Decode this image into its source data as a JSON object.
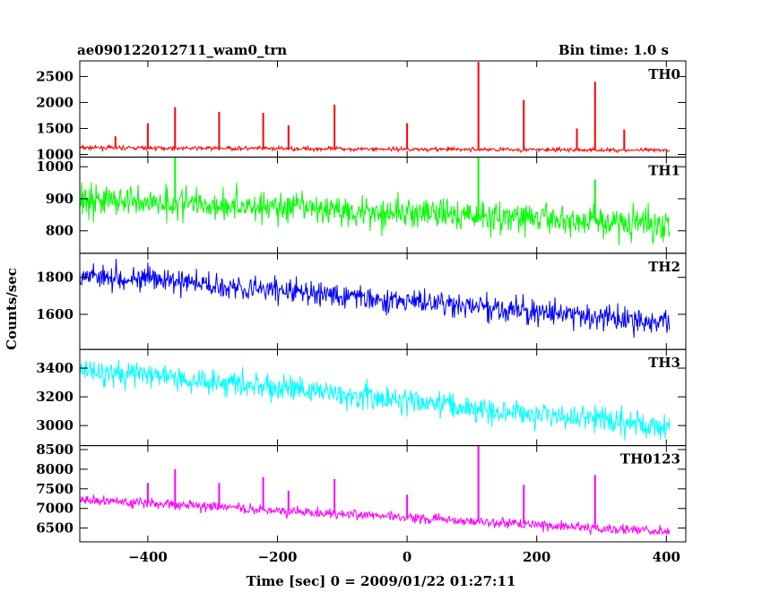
{
  "chart_data": {
    "type": "line",
    "title": "ae090122012711_wam0_trn",
    "subtitle": "Bin time: 1.0 s",
    "xlabel": "Time [sec] 0 = 2009/01/22 01:27:11",
    "ylabel": "Counts/sec",
    "xlim": [
      -505,
      430
    ],
    "x_ticks": [
      -400,
      -200,
      0,
      200,
      400
    ],
    "x_tick_labels": [
      "−400",
      "−200",
      "0",
      "200",
      "400"
    ],
    "x_range": [
      -505,
      405
    ],
    "grid": false,
    "panels": [
      {
        "name": "TH0",
        "color": "#ff0000",
        "ylim": [
          950,
          2800
        ],
        "y_ticks": [
          1000,
          1500,
          2000,
          2500
        ],
        "y_tick_labels": [
          "1000",
          "1500",
          "2000",
          "2500"
        ],
        "start": 1130,
        "end": 1080,
        "noise": 35,
        "spikes": [
          {
            "x": -450,
            "y": 1350
          },
          {
            "x": -400,
            "y": 1600
          },
          {
            "x": -358,
            "y": 1910
          },
          {
            "x": -290,
            "y": 1820
          },
          {
            "x": -222,
            "y": 1800
          },
          {
            "x": -183,
            "y": 1560
          },
          {
            "x": -112,
            "y": 1960
          },
          {
            "x": 0,
            "y": 1600
          },
          {
            "x": 110,
            "y": 2780
          },
          {
            "x": 180,
            "y": 2050
          },
          {
            "x": 262,
            "y": 1500
          },
          {
            "x": 290,
            "y": 2400
          },
          {
            "x": 335,
            "y": 1480
          }
        ]
      },
      {
        "name": "TH1",
        "color": "#00ff00",
        "ylim": [
          730,
          1030
        ],
        "y_ticks": [
          800,
          900,
          1000
        ],
        "y_tick_labels": [
          "800",
          "900",
          "1000"
        ],
        "start": 900,
        "end": 820,
        "noise": 45,
        "spikes": [
          {
            "x": -358,
            "y": 1030
          },
          {
            "x": 110,
            "y": 1030
          },
          {
            "x": 290,
            "y": 960
          }
        ]
      },
      {
        "name": "TH2",
        "color": "#0000ff",
        "ylim": [
          1410,
          1930
        ],
        "y_ticks": [
          1600,
          1800
        ],
        "y_tick_labels": [
          "1600",
          "1800"
        ],
        "start": 1820,
        "end": 1550,
        "noise": 60,
        "spikes": []
      },
      {
        "name": "TH3",
        "color": "#00ffff",
        "ylim": [
          2860,
          3530
        ],
        "y_ticks": [
          3000,
          3200,
          3400
        ],
        "y_tick_labels": [
          "3000",
          "3200",
          "3400"
        ],
        "start": 3400,
        "end": 2990,
        "noise": 85,
        "spikes": []
      },
      {
        "name": "TH0123",
        "color": "#ff00ff",
        "ylim": [
          6150,
          8600
        ],
        "y_ticks": [
          6500,
          7000,
          7500,
          8000,
          8500
        ],
        "y_tick_labels": [
          "6500",
          "7000",
          "7500",
          "8000",
          "8500"
        ],
        "start": 7230,
        "end": 6400,
        "noise": 120,
        "spikes": [
          {
            "x": -400,
            "y": 7650
          },
          {
            "x": -358,
            "y": 8000
          },
          {
            "x": -290,
            "y": 7650
          },
          {
            "x": -222,
            "y": 7800
          },
          {
            "x": -183,
            "y": 7450
          },
          {
            "x": -112,
            "y": 7750
          },
          {
            "x": 0,
            "y": 7350
          },
          {
            "x": 110,
            "y": 8600
          },
          {
            "x": 180,
            "y": 7600
          },
          {
            "x": 290,
            "y": 7850
          }
        ]
      }
    ]
  }
}
